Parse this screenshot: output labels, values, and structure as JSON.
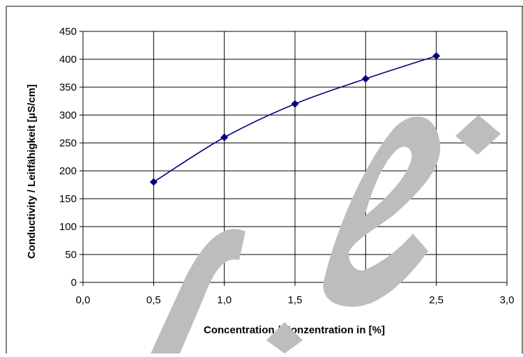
{
  "chart_data": {
    "type": "line",
    "title": "",
    "xlabel": "Concentration / Konzentration in [%]",
    "ylabel": "Conductivity / Leitfähigkeit [µS/cm]",
    "xlim": [
      0,
      3
    ],
    "ylim": [
      0,
      450
    ],
    "x_ticks": [
      "0,0",
      "0,5",
      "1,0",
      "1,5",
      "2,0",
      "2,5",
      "3,0"
    ],
    "y_ticks": [
      "0",
      "50",
      "100",
      "150",
      "200",
      "250",
      "300",
      "350",
      "400",
      "450"
    ],
    "grid": true,
    "legend": "none",
    "smooth": true,
    "marker": "diamond",
    "series": [
      {
        "color": "#000080",
        "x": [
          0.5,
          1.0,
          1.5,
          2.0,
          2.5
        ],
        "y": [
          180,
          260,
          320,
          365,
          406
        ]
      }
    ]
  },
  "watermark": {
    "color": "#bdbdbd"
  }
}
